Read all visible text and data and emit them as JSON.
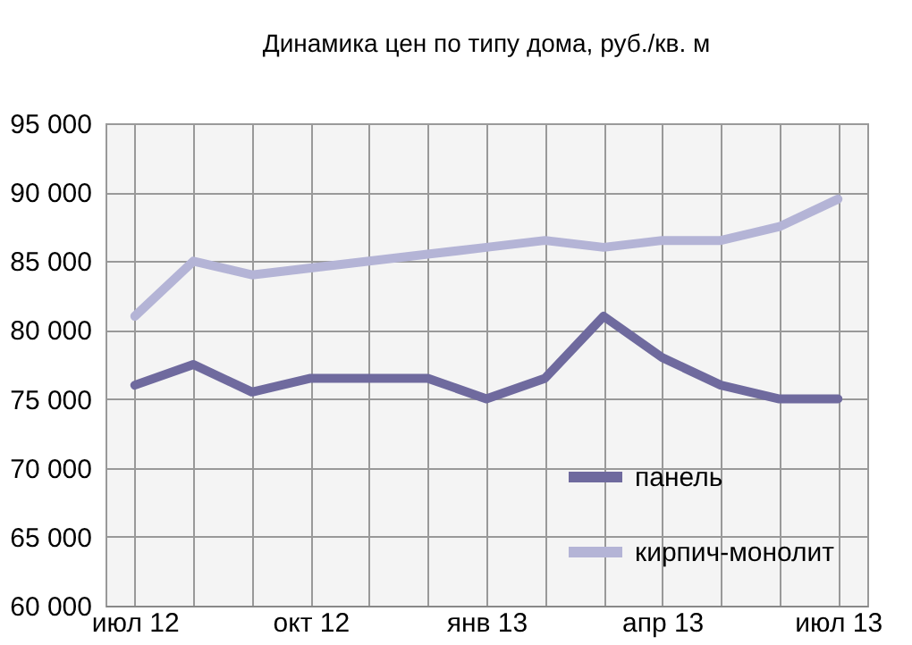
{
  "chart_data": {
    "type": "line",
    "title": "Динамика цен по типу дома, руб./кв. м",
    "categories": [
      "июл 12",
      null,
      null,
      "окт 12",
      null,
      null,
      "янв 13",
      null,
      null,
      "апр 13",
      null,
      null,
      "июл 13"
    ],
    "series": [
      {
        "name": "панель",
        "color": "#6f6a9e",
        "values": [
          76000,
          77500,
          75500,
          76500,
          76500,
          76500,
          75000,
          76500,
          81000,
          78000,
          76000,
          75000,
          75000
        ]
      },
      {
        "name": "кирпич-монолит",
        "color": "#b4b4d6",
        "values": [
          81000,
          85000,
          84000,
          84500,
          85000,
          85500,
          86000,
          86500,
          86000,
          86500,
          86500,
          87500,
          89500
        ]
      }
    ],
    "ylim": [
      60000,
      95000
    ],
    "yticks": [
      {
        "value": 60000,
        "label": "60 000"
      },
      {
        "value": 65000,
        "label": "65 000"
      },
      {
        "value": 70000,
        "label": "70 000"
      },
      {
        "value": 75000,
        "label": "75 000"
      },
      {
        "value": 80000,
        "label": "80 000"
      },
      {
        "value": 85000,
        "label": "85 000"
      },
      {
        "value": 90000,
        "label": "90 000"
      },
      {
        "value": 95000,
        "label": "95 000"
      }
    ],
    "grid": true,
    "legend": "bottom right",
    "marker": "none",
    "line_style": "solid"
  }
}
